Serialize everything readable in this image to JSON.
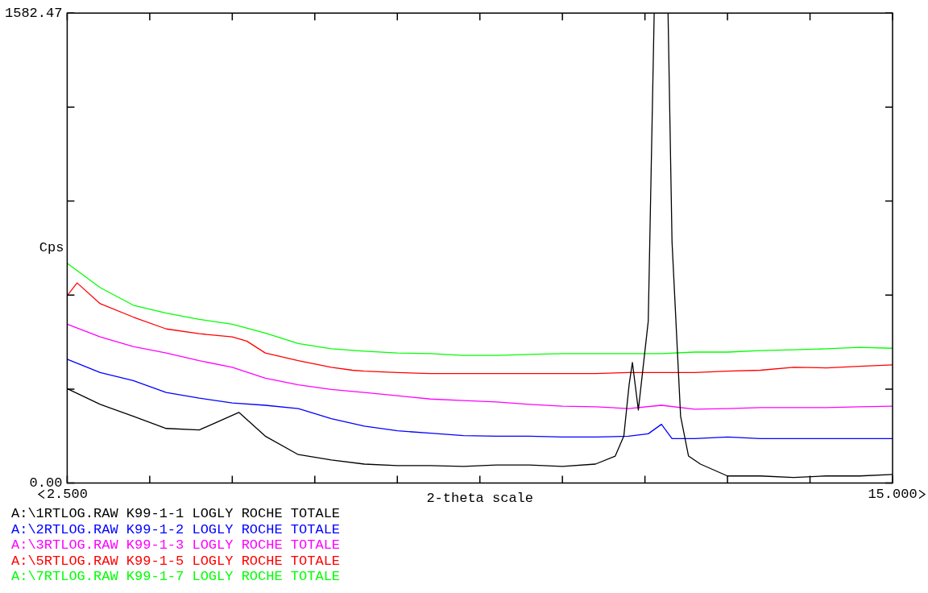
{
  "chart_data": {
    "type": "line",
    "xlabel": "2-theta scale",
    "ylabel": "Cps",
    "xlim": [
      2.5,
      15
    ],
    "ylim": [
      0,
      1582.47
    ],
    "xticks": [
      {
        "value": 2.5,
        "label": "2.500"
      },
      {
        "value": 3.75,
        "label": null
      },
      {
        "value": 5,
        "label": null
      },
      {
        "value": 6.25,
        "label": null
      },
      {
        "value": 7.5,
        "label": null
      },
      {
        "value": 8.75,
        "label": null
      },
      {
        "value": 10,
        "label": null
      },
      {
        "value": 11.25,
        "label": null
      },
      {
        "value": 12.5,
        "label": null
      },
      {
        "value": 13.75,
        "label": null
      },
      {
        "value": 15,
        "label": "15.000"
      }
    ],
    "yticks": [
      {
        "value": 0,
        "label": "0.00"
      },
      {
        "value": 316.494,
        "label": null
      },
      {
        "value": 632.988,
        "label": null
      },
      {
        "value": 949.482,
        "label": null
      },
      {
        "value": 1265.976,
        "label": null
      },
      {
        "value": 1582.47,
        "label": "1582.47"
      }
    ],
    "grid": false,
    "legend": "bottom",
    "marker": "none",
    "line_style": "solid",
    "series": [
      {
        "name": "A:\\1RTLOG.RAW K99-1-1 LOGLY ROCHE TOTALE",
        "color": "#000000",
        "x": [
          2.5,
          3,
          3.5,
          4,
          4.5,
          5.1,
          5.5,
          6,
          6.5,
          7,
          7.5,
          8,
          8.5,
          9,
          9.5,
          10,
          10.5,
          10.8,
          10.93,
          11.01,
          11.06,
          11.15,
          11.3,
          11.39,
          11.5,
          11.6,
          11.66,
          11.79,
          11.91,
          12.09,
          12.5,
          13,
          13.5,
          14,
          14.5,
          15
        ],
        "values": [
          318,
          265,
          225,
          184,
          179,
          238,
          158,
          96,
          78,
          64,
          59,
          59,
          56,
          61,
          61,
          56,
          64,
          91,
          158,
          331,
          406,
          246,
          545,
          1582,
          null,
          1582,
          813,
          225,
          91,
          64,
          24,
          24,
          19,
          24,
          24,
          29
        ]
      },
      {
        "name": "A:\\2RTLOG.RAW K99-1-2 LOGLY ROCHE TOTALE",
        "color": "#0000ff",
        "x": [
          2.5,
          3,
          3.5,
          4,
          4.5,
          5,
          5.5,
          6,
          6.5,
          7,
          7.5,
          8,
          8.5,
          9,
          9.5,
          10,
          10.5,
          11,
          11.3,
          11.5,
          11.66,
          12,
          12.5,
          13,
          13.5,
          14,
          14.5,
          15
        ],
        "values": [
          417,
          372,
          345,
          305,
          286,
          270,
          262,
          251,
          217,
          192,
          176,
          168,
          160,
          158,
          158,
          155,
          155,
          158,
          166,
          198,
          150,
          150,
          155,
          150,
          150,
          150,
          150,
          150
        ]
      },
      {
        "name": "A:\\3RTLOG.RAW K99-1-3 LOGLY ROCHE TOTALE",
        "color": "#ff00ff",
        "x": [
          2.5,
          3,
          3.5,
          4,
          4.5,
          5,
          5.5,
          6,
          6.5,
          7,
          7.5,
          8,
          8.5,
          9,
          9.5,
          10,
          10.5,
          11,
          11.5,
          12,
          12.5,
          13,
          13.5,
          14,
          14.5,
          15
        ],
        "values": [
          535,
          492,
          460,
          438,
          412,
          390,
          353,
          331,
          315,
          305,
          294,
          283,
          278,
          273,
          265,
          259,
          257,
          251,
          262,
          249,
          251,
          254,
          254,
          254,
          257,
          259
        ]
      },
      {
        "name": "A:\\5RTLOG.RAW K99-1-5 LOGLY ROCHE TOTALE",
        "color": "#ff0000",
        "x": [
          2.5,
          2.65,
          3,
          3.5,
          4,
          4.5,
          5,
          5.22,
          5.5,
          6,
          6.5,
          6.82,
          7,
          7.5,
          8,
          8.5,
          9,
          9.5,
          10,
          10.5,
          11,
          11.5,
          12,
          12.5,
          13,
          13.5,
          14,
          14.5,
          15
        ],
        "values": [
          631,
          674,
          604,
          559,
          519,
          503,
          492,
          478,
          438,
          412,
          390,
          380,
          377,
          372,
          369,
          369,
          369,
          369,
          369,
          369,
          372,
          372,
          372,
          377,
          380,
          390,
          388,
          393,
          398
        ]
      },
      {
        "name": "A:\\7RTLOG.RAW K99-1-7 LOGLY ROCHE TOTALE",
        "color": "#00ff00",
        "x": [
          2.5,
          3,
          3.5,
          4,
          4.5,
          5,
          5.5,
          6,
          6.5,
          7,
          7.5,
          8,
          8.5,
          9,
          9.5,
          10,
          10.5,
          11,
          11.5,
          12,
          12.5,
          13,
          13.5,
          14,
          14.5,
          15
        ],
        "values": [
          740,
          658,
          599,
          572,
          551,
          535,
          505,
          470,
          452,
          444,
          438,
          436,
          430,
          430,
          433,
          436,
          436,
          436,
          436,
          441,
          441,
          446,
          449,
          452,
          457,
          454
        ]
      }
    ]
  }
}
